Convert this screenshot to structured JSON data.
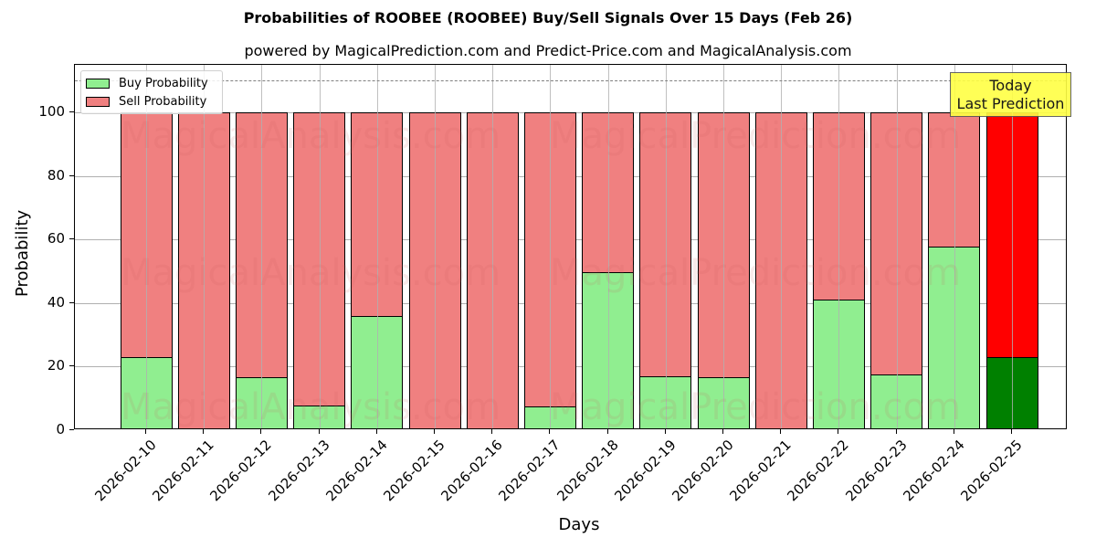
{
  "chart": {
    "title": "Probabilities of ROOBEE (ROOBEE) Buy/Sell Signals Over 15 Days (Feb 26)",
    "subtitle": "powered by MagicalPrediction.com and Predict-Price.com and MagicalAnalysis.com",
    "xlabel": "Days",
    "ylabel": "Probability",
    "legend": {
      "buy_label": "Buy Probability",
      "sell_label": "Sell Probability"
    },
    "annotation": {
      "line1": "Today",
      "line2": "Last Prediction"
    },
    "watermarks": [
      "MagicalAnalysis.com",
      "MagicalPrediction.com"
    ],
    "yticks": [
      "0",
      "20",
      "40",
      "60",
      "80",
      "100"
    ]
  },
  "colors": {
    "buy": "#90ee90",
    "sell": "#f08080",
    "buy_today": "#008000",
    "sell_today": "#ff0000",
    "annotation_bg": "#ffff44"
  },
  "chart_data": {
    "type": "bar",
    "stacked": true,
    "title": "Probabilities of ROOBEE (ROOBEE) Buy/Sell Signals Over 15 Days (Feb 26)",
    "subtitle": "powered by MagicalPrediction.com and Predict-Price.com and MagicalAnalysis.com",
    "xlabel": "Days",
    "ylabel": "Probability",
    "ylim": [
      0,
      115
    ],
    "yticks": [
      0,
      20,
      40,
      60,
      80,
      100
    ],
    "grid": true,
    "legend_position": "upper left",
    "reference_line": {
      "y": 110,
      "style": "dashed",
      "color": "#808080"
    },
    "categories": [
      "2026-02-10",
      "2026-02-11",
      "2026-02-12",
      "2026-02-13",
      "2026-02-14",
      "2026-02-15",
      "2026-02-16",
      "2026-02-17",
      "2026-02-18",
      "2026-02-19",
      "2026-02-20",
      "2026-02-21",
      "2026-02-22",
      "2026-02-23",
      "2026-02-24",
      "2026-02-25"
    ],
    "series": [
      {
        "name": "Buy Probability",
        "values": [
          23.1,
          0,
          16.7,
          7.8,
          35.8,
          0,
          0,
          7.5,
          49.6,
          17.0,
          16.7,
          0,
          41.0,
          17.6,
          57.8,
          23.1
        ]
      },
      {
        "name": "Sell Probability",
        "values": [
          76.9,
          100,
          83.3,
          92.2,
          64.2,
          100,
          100,
          92.5,
          50.4,
          83.0,
          83.3,
          100,
          59.0,
          82.4,
          42.2,
          76.9
        ]
      }
    ],
    "annotations": [
      {
        "text": "Today\nLast Prediction",
        "x": "2026-02-25"
      }
    ]
  }
}
